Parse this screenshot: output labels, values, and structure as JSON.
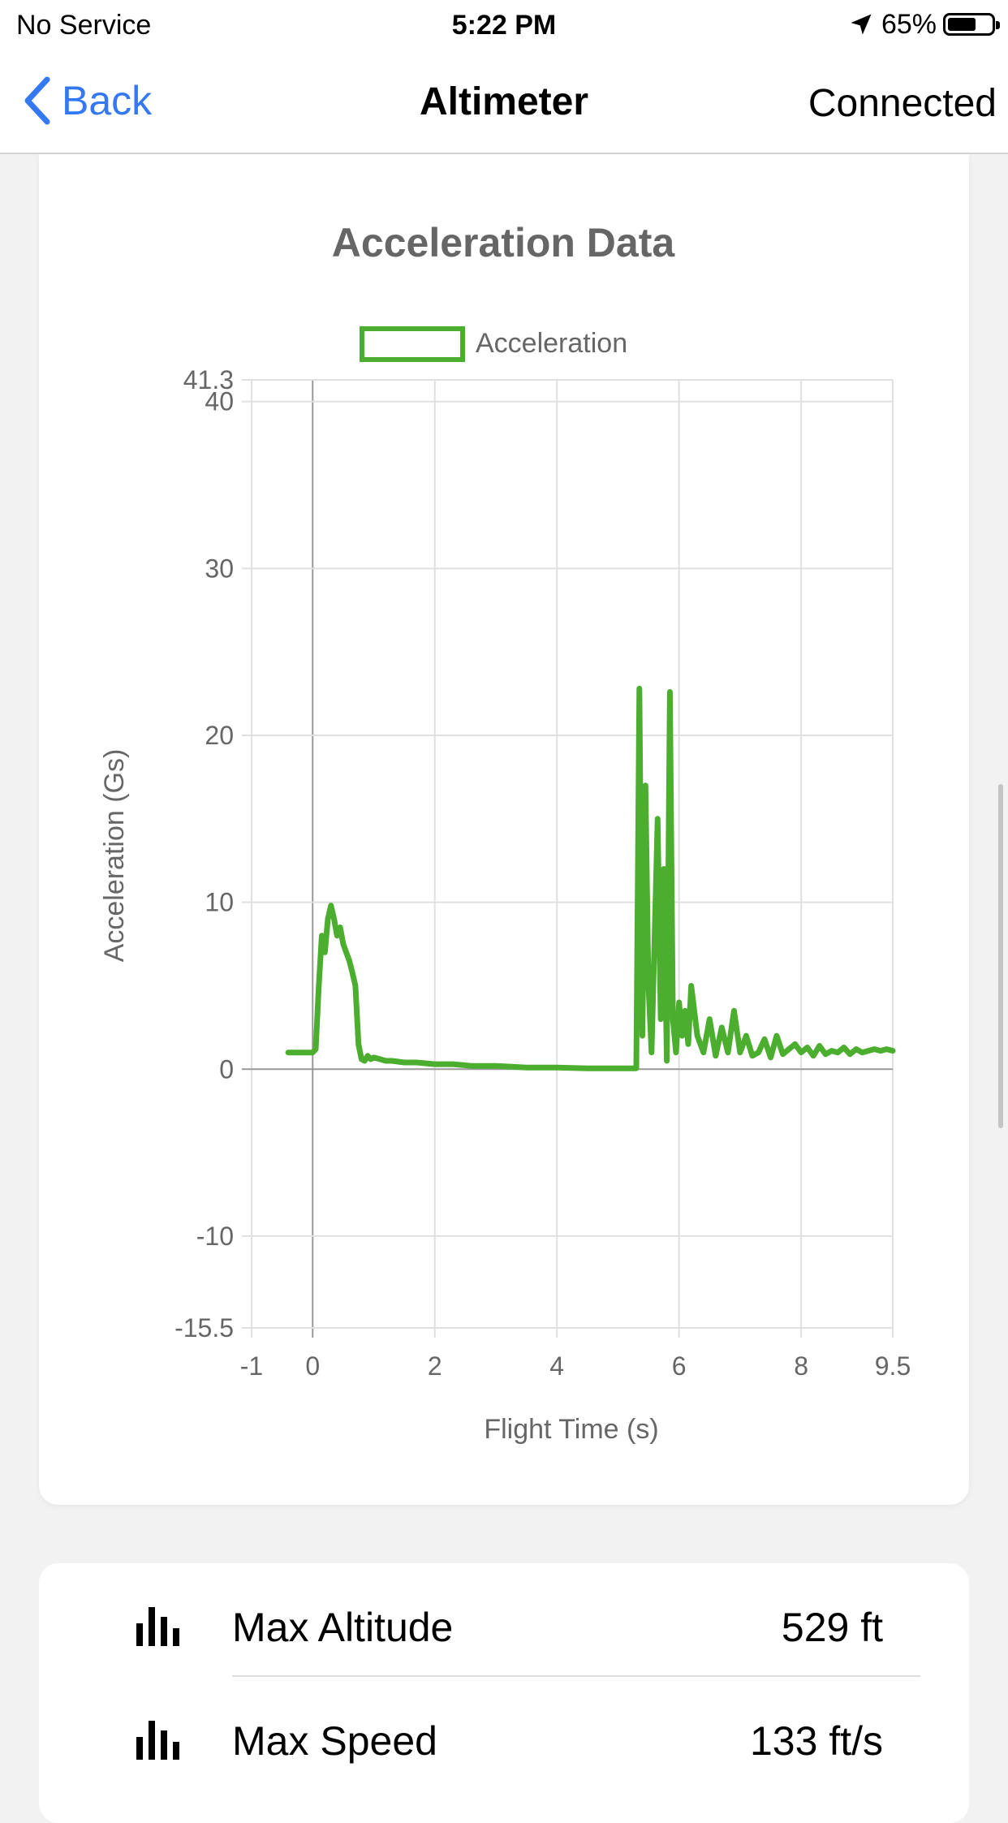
{
  "status_bar": {
    "carrier": "No Service",
    "time": "5:22 PM",
    "battery_percent": "65%",
    "battery_level": 0.65
  },
  "nav": {
    "back_label": "Back",
    "title": "Altimeter",
    "status": "Connected"
  },
  "chart_data": {
    "type": "line",
    "title": "Acceleration Data",
    "xlabel": "Flight Time (s)",
    "ylabel": "Acceleration (Gs)",
    "xlim": [
      -1,
      9.5
    ],
    "ylim": [
      -15.5,
      41.3
    ],
    "x_ticks": [
      "-1",
      "0",
      "2",
      "4",
      "6",
      "8",
      "9.5"
    ],
    "x_tick_values": [
      -1,
      0,
      2,
      4,
      6,
      8,
      9.5
    ],
    "y_ticks": [
      "41.3",
      "40",
      "30",
      "20",
      "10",
      "0",
      "-10",
      "-15.5"
    ],
    "y_tick_values": [
      41.3,
      40,
      30,
      20,
      10,
      0,
      -10,
      -15.5
    ],
    "grid": true,
    "legend_position": "top",
    "series": [
      {
        "name": "Acceleration",
        "color": "#4cae2f",
        "x": [
          -0.4,
          0,
          0.05,
          0.1,
          0.15,
          0.2,
          0.25,
          0.3,
          0.35,
          0.4,
          0.45,
          0.5,
          0.55,
          0.6,
          0.65,
          0.7,
          0.75,
          0.8,
          0.85,
          0.9,
          0.95,
          1.0,
          1.1,
          1.2,
          1.3,
          1.5,
          1.7,
          2.0,
          2.3,
          2.6,
          3.0,
          3.5,
          4.0,
          4.5,
          5.0,
          5.3,
          5.35,
          5.4,
          5.45,
          5.5,
          5.55,
          5.6,
          5.65,
          5.7,
          5.75,
          5.8,
          5.85,
          5.9,
          5.95,
          6.0,
          6.05,
          6.1,
          6.15,
          6.2,
          6.3,
          6.4,
          6.5,
          6.6,
          6.7,
          6.8,
          6.9,
          7.0,
          7.1,
          7.2,
          7.3,
          7.4,
          7.5,
          7.6,
          7.7,
          7.8,
          7.9,
          8.0,
          8.1,
          8.2,
          8.3,
          8.4,
          8.5,
          8.6,
          8.7,
          8.8,
          8.9,
          9.0,
          9.1,
          9.2,
          9.3,
          9.4,
          9.5
        ],
        "y": [
          1,
          1,
          1.2,
          5,
          8,
          7,
          9,
          9.8,
          9,
          8,
          8.5,
          7.5,
          7,
          6.5,
          5.8,
          5,
          1.5,
          0.6,
          0.5,
          0.8,
          0.6,
          0.7,
          0.6,
          0.5,
          0.5,
          0.4,
          0.4,
          0.3,
          0.3,
          0.2,
          0.2,
          0.1,
          0.1,
          0.05,
          0.05,
          0.05,
          22.8,
          2,
          17,
          5,
          1,
          8,
          15,
          3,
          12,
          0.5,
          22.6,
          3,
          1,
          4,
          2,
          3.5,
          1.5,
          5,
          2,
          1,
          3,
          0.8,
          2.5,
          1,
          3.5,
          1,
          2,
          0.8,
          1,
          1.8,
          0.7,
          2,
          0.9,
          1.2,
          1.5,
          1,
          1.3,
          0.8,
          1.4,
          0.9,
          1.1,
          1,
          1.3,
          0.9,
          1.2,
          1,
          1.1,
          1.2,
          1.1,
          1.2,
          1.1
        ]
      }
    ]
  },
  "stats": [
    {
      "label": "Max Altitude",
      "value": "529 ft",
      "icon": "bar-chart-icon"
    },
    {
      "label": "Max Speed",
      "value": "133 ft/s",
      "icon": "bar-chart-icon"
    }
  ]
}
